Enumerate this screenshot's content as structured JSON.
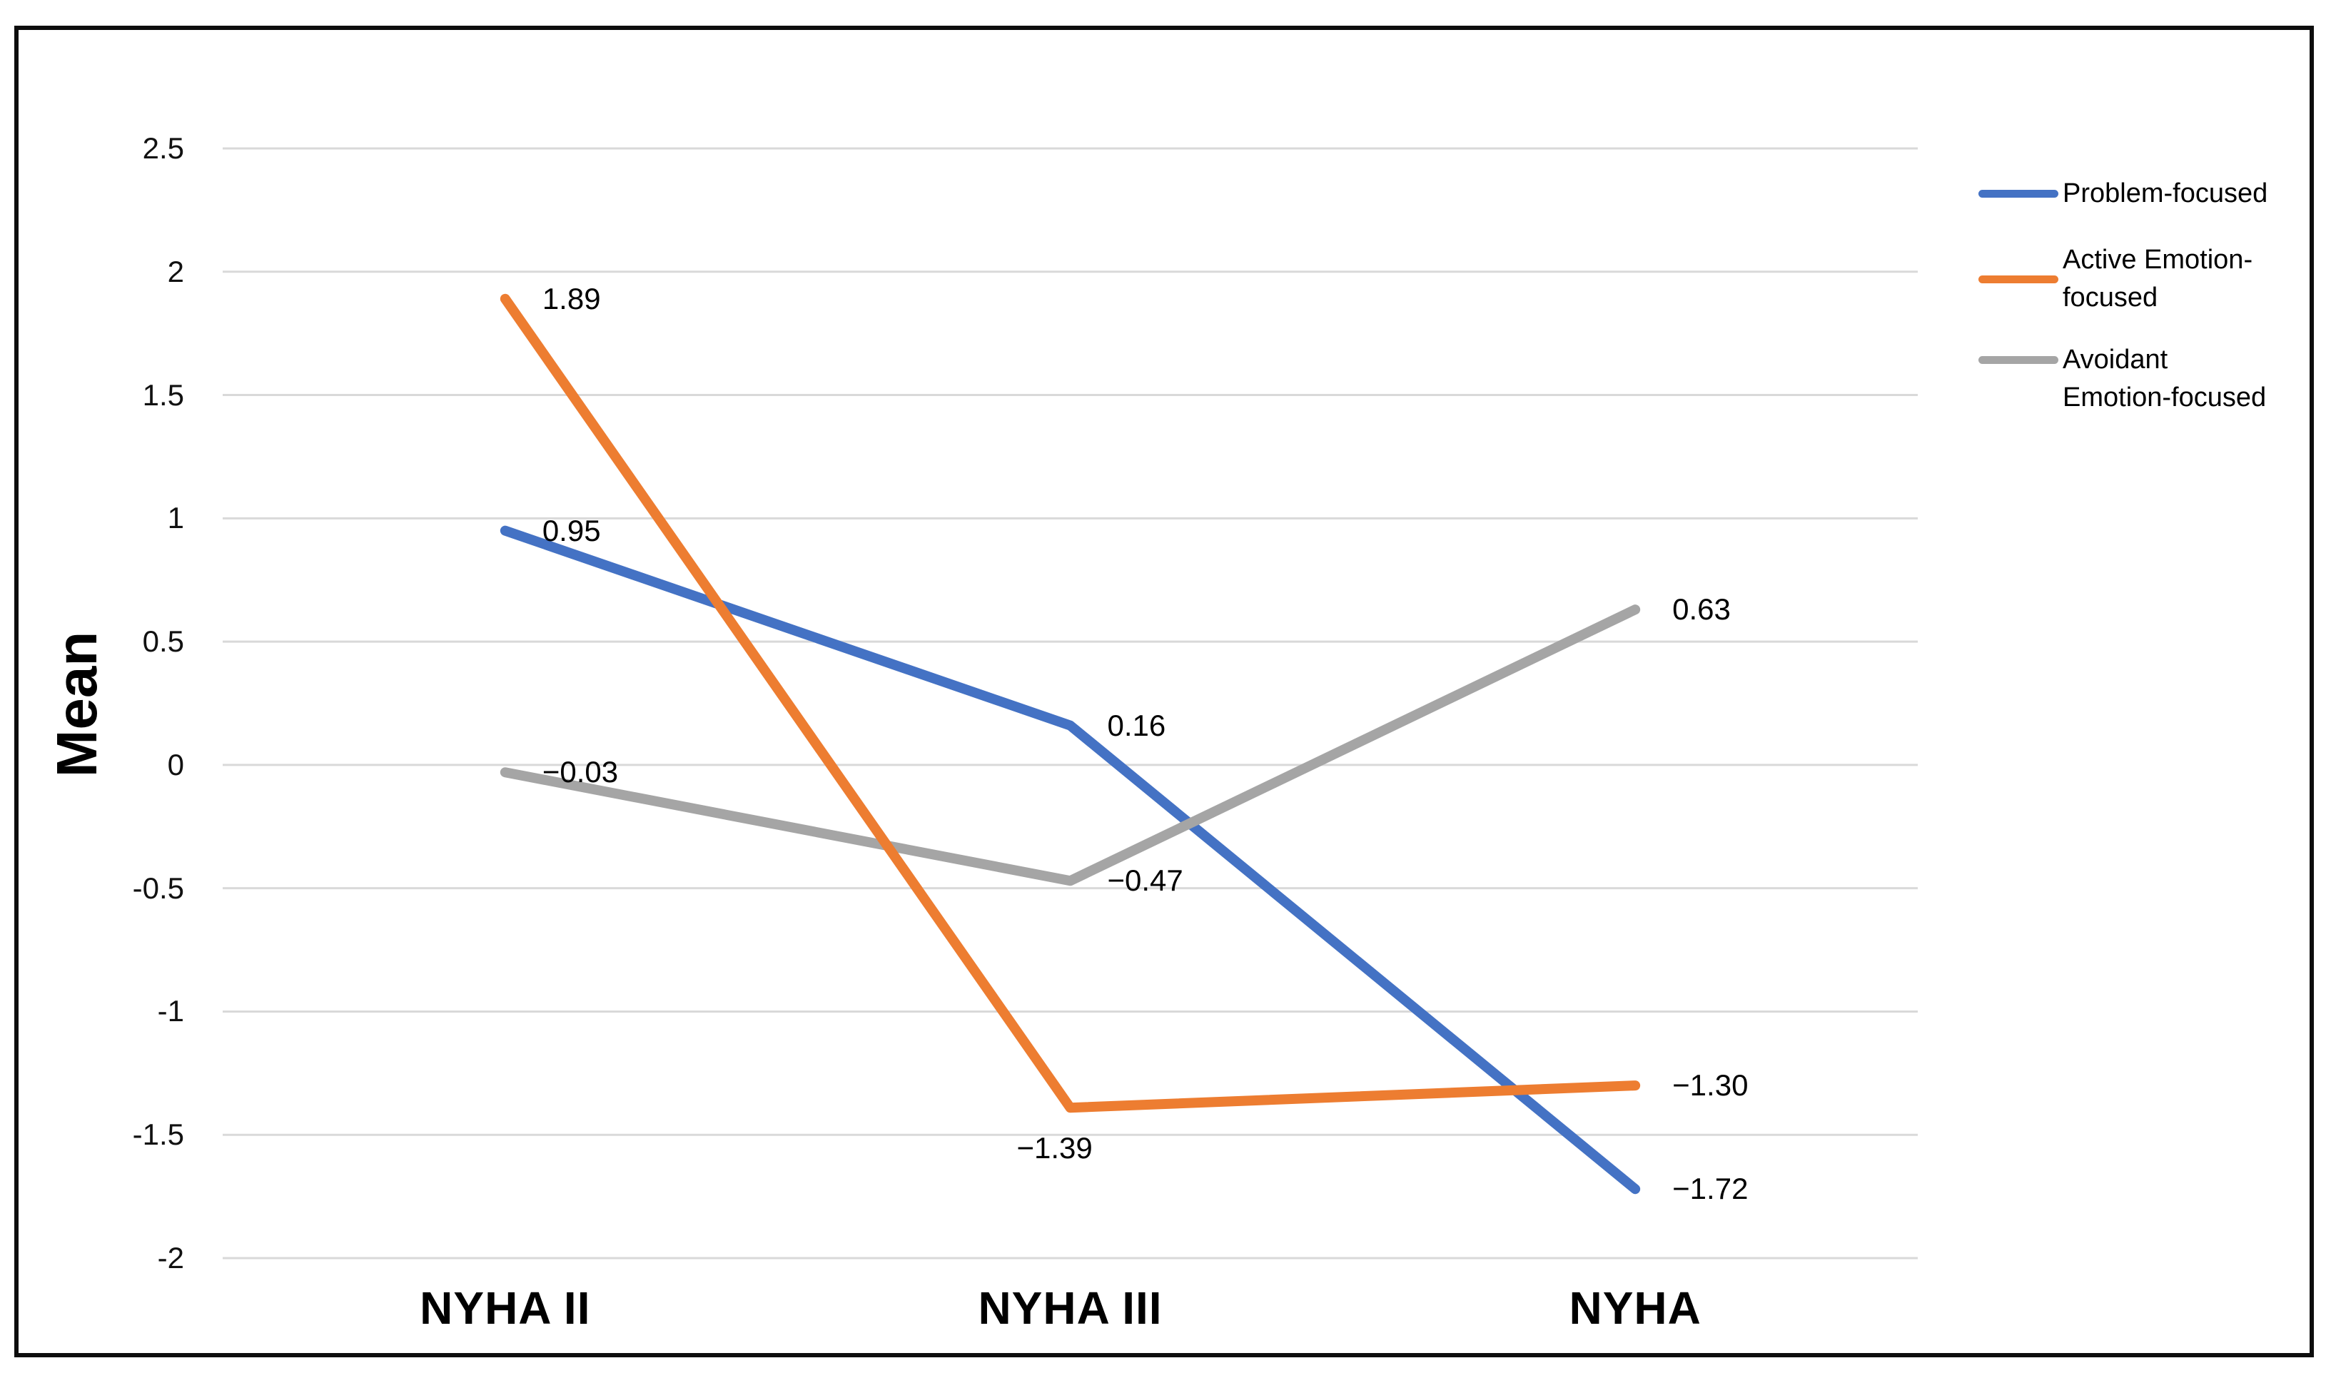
{
  "chart_data": {
    "type": "line",
    "categories": [
      "NYHA II",
      "NYHA III",
      "NYHA"
    ],
    "series": [
      {
        "name": "Problem-focused",
        "color": "#4472C4",
        "values": [
          0.95,
          0.16,
          -1.72
        ],
        "labels": [
          "0.95",
          "0.16",
          "−1.72"
        ],
        "label_sides": [
          "right",
          "right",
          "right"
        ]
      },
      {
        "name": "Active Emotion-focused",
        "color": "#ED7D31",
        "values": [
          1.89,
          -1.39,
          -1.3
        ],
        "labels": [
          "1.89",
          "−1.39",
          "−1.30"
        ],
        "label_sides": [
          "right",
          "below",
          "right"
        ]
      },
      {
        "name": "Avoidant Emotion-focused",
        "color": "#A5A5A5",
        "values": [
          -0.03,
          -0.47,
          0.63
        ],
        "labels": [
          "−0.03",
          "−0.47",
          "0.63"
        ],
        "label_sides": [
          "right",
          "right",
          "right"
        ]
      }
    ],
    "title": "",
    "xlabel": "",
    "ylabel": "Mean",
    "ylim": [
      -2,
      2.5
    ],
    "ytick_step": 0.5,
    "yticks": [
      "2.5",
      "2",
      "1.5",
      "1",
      "0.5",
      "0",
      "-0.5",
      "-1",
      "-1.5",
      "-2"
    ],
    "grid": true,
    "legend_position": "right"
  },
  "legend": {
    "entries": [
      {
        "lines": [
          "Problem-focused"
        ],
        "color": "#4472C4"
      },
      {
        "lines": [
          "Active Emotion-",
          "focused"
        ],
        "color": "#ED7D31"
      },
      {
        "lines": [
          "Avoidant",
          "Emotion-focused"
        ],
        "color": "#A5A5A5"
      }
    ]
  },
  "colors": {
    "gridline": "#D9D9D9",
    "frame_border": "#0D0D0D",
    "text": "#000000"
  }
}
